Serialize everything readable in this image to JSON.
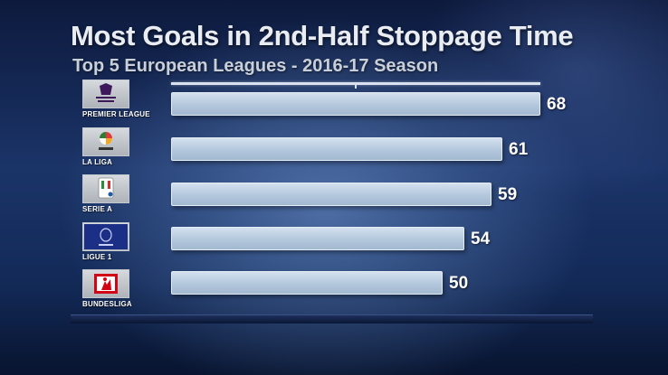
{
  "chart_data": {
    "type": "bar",
    "orientation": "horizontal",
    "title": "Most Goals in 2nd-Half Stoppage Time",
    "subtitle": "Top 5 European Leagues - 2016-17 Season",
    "categories": [
      "PREMIER LEAGUE",
      "LA LIGA",
      "SERIE A",
      "LIGUE 1",
      "BUNDESLIGA"
    ],
    "values": [
      68,
      61,
      59,
      54,
      50
    ],
    "data_labels": [
      "68",
      "61",
      "59",
      "54",
      "50"
    ],
    "logos": [
      "premier-league-logo",
      "la-liga-logo",
      "serie-a-logo",
      "ligue-1-logo",
      "bundesliga-logo"
    ],
    "grid": false,
    "legend": "none",
    "colors": {
      "bar": "#c3d3e5",
      "text": "#ffffff",
      "background": "#1b3468"
    }
  }
}
